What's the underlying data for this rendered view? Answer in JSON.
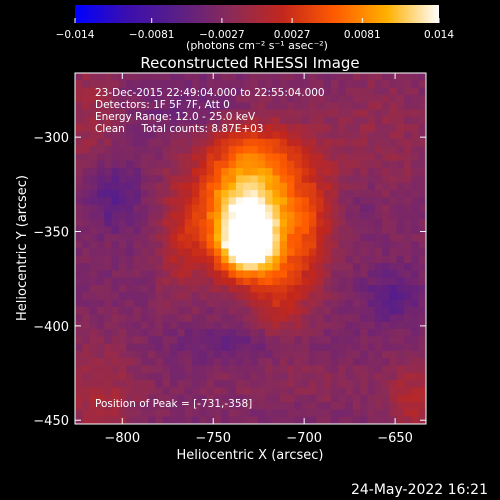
{
  "chart_data": {
    "type": "heatmap",
    "title": "Reconstructed RHESSI Image",
    "xlabel": "Heliocentric X (arcsec)",
    "ylabel": "Heliocentric Y (arcsec)",
    "xlim": [
      -826,
      -633
    ],
    "ylim": [
      -452,
      -266
    ],
    "x_ticks": [
      {
        "value": -800,
        "label": "−800"
      },
      {
        "value": -750,
        "label": "−750"
      },
      {
        "value": -700,
        "label": "−700"
      },
      {
        "value": -650,
        "label": "−650"
      }
    ],
    "y_ticks": [
      {
        "value": -300,
        "label": "−300"
      },
      {
        "value": -350,
        "label": "−350"
      },
      {
        "value": -400,
        "label": "−400"
      },
      {
        "value": -450,
        "label": "−450"
      }
    ],
    "colorbar": {
      "min": -0.014,
      "max": 0.014,
      "colors": [
        "#0000ff",
        "#3b0fae",
        "#5b1f86",
        "#8a2b58",
        "#c3271c",
        "#ff5b00",
        "#ffb000",
        "#ffffff"
      ],
      "ticks": [
        {
          "value": -0.014,
          "label": "−0.014"
        },
        {
          "value": -0.0081,
          "label": "−0.0081"
        },
        {
          "value": -0.0027,
          "label": "−0.0027"
        },
        {
          "value": 0.0027,
          "label": "0.0027"
        },
        {
          "value": 0.0081,
          "label": "0.0081"
        },
        {
          "value": 0.014,
          "label": "0.014"
        }
      ],
      "unit_label": "(photons cm⁻² s⁻¹ asec⁻²)"
    },
    "grid": false,
    "annotations": [
      "23-Dec-2015 22:49:04.000 to 22:55:04.000",
      "Detectors: 1F 5F 7F, Att 0",
      "Energy Range: 12.0 - 25.0 keV",
      "Clean     Total counts: 8.87E+03"
    ],
    "peak_label": "Position of Peak = [-731,-358]",
    "peak": {
      "x": -731,
      "y": -358,
      "value": 0.014
    },
    "source_extent": {
      "x_range": [
        -765,
        -690
      ],
      "y_range": [
        -405,
        -315
      ]
    },
    "negative_lobes": [
      {
        "x": -806,
        "y": -330
      },
      {
        "x": -652,
        "y": -385
      }
    ]
  },
  "footer": {
    "timestamp": "24-May-2022 16:21"
  }
}
